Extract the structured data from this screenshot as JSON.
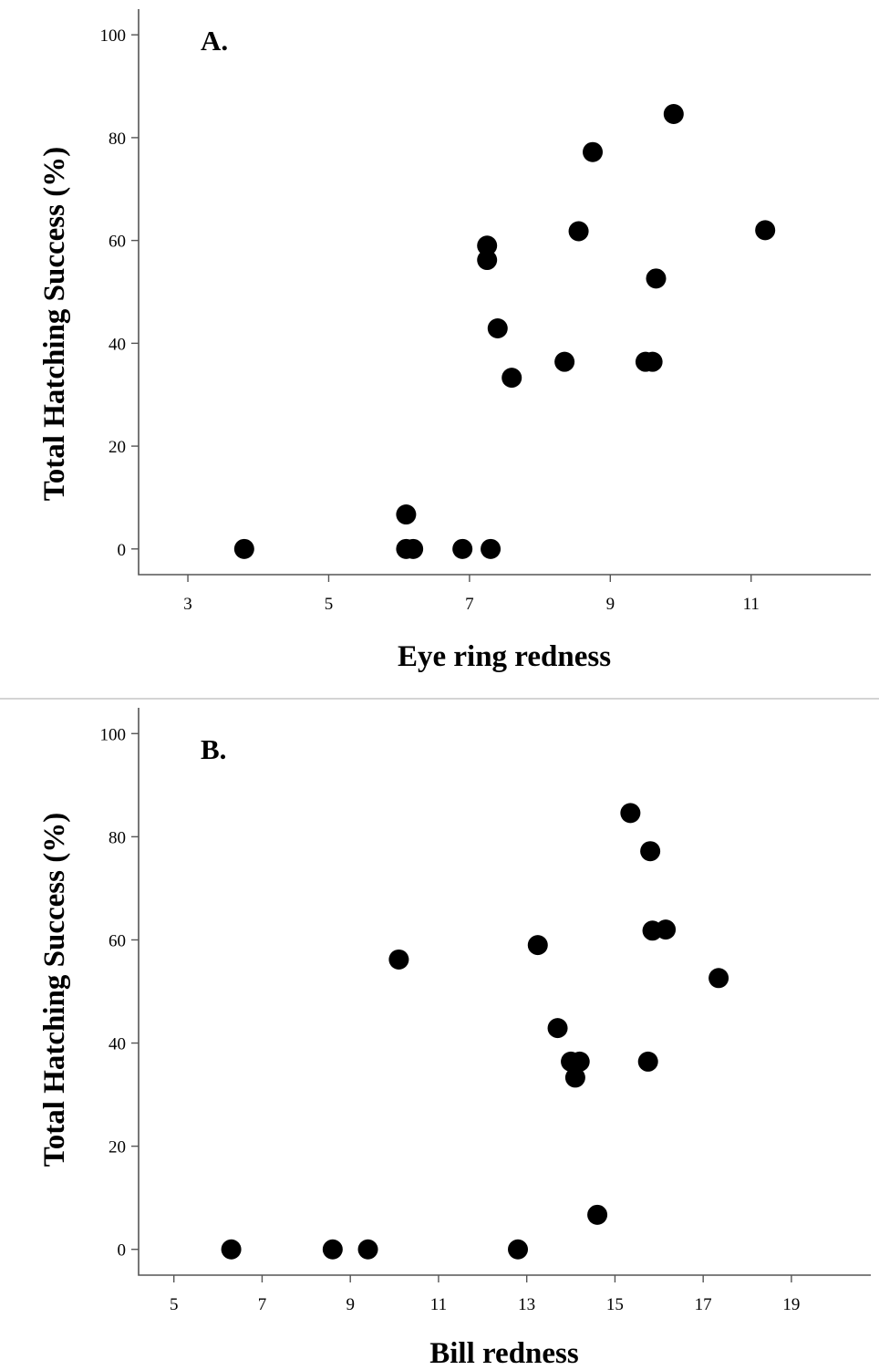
{
  "chart_data": [
    {
      "type": "scatter",
      "panel_label": "A.",
      "xlabel": "Eye ring redness",
      "ylabel": "Total Hatching Success (%)",
      "xlim": [
        2.3,
        12.7
      ],
      "ylim": [
        -5,
        105
      ],
      "xticks": [
        3,
        5,
        7,
        9,
        11
      ],
      "yticks": [
        0,
        20,
        40,
        60,
        80,
        100
      ],
      "grid": false,
      "points": [
        {
          "x": 3.8,
          "y": 0
        },
        {
          "x": 6.1,
          "y": 6.7
        },
        {
          "x": 6.1,
          "y": 0
        },
        {
          "x": 6.2,
          "y": 0
        },
        {
          "x": 6.9,
          "y": 0
        },
        {
          "x": 7.3,
          "y": 0
        },
        {
          "x": 7.25,
          "y": 59
        },
        {
          "x": 7.25,
          "y": 56.2
        },
        {
          "x": 7.4,
          "y": 42.9
        },
        {
          "x": 7.6,
          "y": 33.3
        },
        {
          "x": 8.35,
          "y": 36.4
        },
        {
          "x": 8.55,
          "y": 61.8
        },
        {
          "x": 8.75,
          "y": 77.2
        },
        {
          "x": 9.5,
          "y": 36.4
        },
        {
          "x": 9.6,
          "y": 36.4
        },
        {
          "x": 9.65,
          "y": 52.6
        },
        {
          "x": 9.9,
          "y": 84.6
        },
        {
          "x": 11.2,
          "y": 62
        }
      ]
    },
    {
      "type": "scatter",
      "panel_label": "B.",
      "xlabel": "Bill redness",
      "ylabel": "Total Hatching Success (%)",
      "xlim": [
        4.2,
        20.8
      ],
      "ylim": [
        -5,
        105
      ],
      "xticks": [
        5,
        7,
        9,
        11,
        13,
        15,
        17,
        19
      ],
      "yticks": [
        0,
        20,
        40,
        60,
        80,
        100
      ],
      "grid": false,
      "points": [
        {
          "x": 6.3,
          "y": 0
        },
        {
          "x": 8.6,
          "y": 0
        },
        {
          "x": 9.4,
          "y": 0
        },
        {
          "x": 12.8,
          "y": 0
        },
        {
          "x": 14.6,
          "y": 6.7
        },
        {
          "x": 10.1,
          "y": 56.2
        },
        {
          "x": 13.25,
          "y": 59
        },
        {
          "x": 13.7,
          "y": 42.9
        },
        {
          "x": 14.0,
          "y": 36.4
        },
        {
          "x": 14.2,
          "y": 36.4
        },
        {
          "x": 14.1,
          "y": 33.3
        },
        {
          "x": 15.35,
          "y": 84.6
        },
        {
          "x": 15.8,
          "y": 77.2
        },
        {
          "x": 15.85,
          "y": 61.8
        },
        {
          "x": 16.15,
          "y": 62
        },
        {
          "x": 15.75,
          "y": 36.4
        },
        {
          "x": 17.35,
          "y": 52.6
        }
      ]
    }
  ]
}
